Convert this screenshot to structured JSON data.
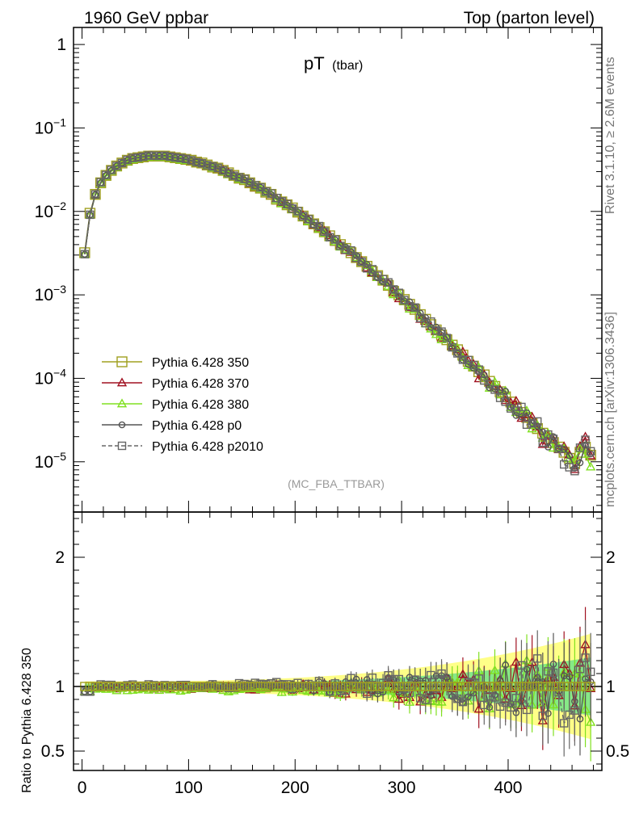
{
  "header": {
    "left": "1960 GeV ppbar",
    "right": "Top (parton level)"
  },
  "plot_title": {
    "main": "pT",
    "sub": "(tbar)"
  },
  "side_texts": {
    "rivet": "Rivet 3.1.10, ≥ 2.6M events",
    "mcplots": "mcplots.cern.ch [arXiv:1306.3436]"
  },
  "analysis_id": "(MC_FBA_TTBAR)",
  "chart_data": [
    {
      "type": "line",
      "yscale": "log",
      "xlim": [
        -8,
        488
      ],
      "ylim": [
        2.5e-06,
        1.6
      ],
      "y_ticks": [
        {
          "value": 1,
          "base": "1",
          "exp": ""
        },
        {
          "value": 0.1,
          "base": "10",
          "exp": "−1"
        },
        {
          "value": 0.01,
          "base": "10",
          "exp": "−2"
        },
        {
          "value": 0.001,
          "base": "10",
          "exp": "−3"
        },
        {
          "value": 0.0001,
          "base": "10",
          "exp": "−4"
        },
        {
          "value": 1e-05,
          "base": "10",
          "exp": "−5"
        }
      ],
      "legend_position": "bottom-left",
      "series": [
        {
          "name": "Pythia 6.428 350",
          "color": "#a0a020",
          "marker": "square-open",
          "line": "solid"
        },
        {
          "name": "Pythia 6.428 370",
          "color": "#a01020",
          "marker": "triangle-open",
          "line": "solid"
        },
        {
          "name": "Pythia 6.428 380",
          "color": "#80e020",
          "marker": "triangle-open",
          "line": "solid"
        },
        {
          "name": "Pythia 6.428 p0",
          "color": "#555555",
          "marker": "circle-open",
          "line": "solid"
        },
        {
          "name": "Pythia 6.428 p2010",
          "color": "#666666",
          "marker": "square-open",
          "line": "dashed"
        }
      ],
      "x": [
        2.5,
        7.5,
        12.5,
        17.5,
        22.5,
        27.5,
        32.5,
        37.5,
        42.5,
        47.5,
        52.5,
        57.5,
        62.5,
        67.5,
        72.5,
        77.5,
        82.5,
        87.5,
        92.5,
        97.5,
        102.5,
        107.5,
        112.5,
        117.5,
        122.5,
        127.5,
        132.5,
        137.5,
        142.5,
        147.5,
        152.5,
        157.5,
        162.5,
        167.5,
        172.5,
        177.5,
        182.5,
        187.5,
        192.5,
        197.5,
        202.5,
        207.5,
        212.5,
        217.5,
        222.5,
        227.5,
        232.5,
        237.5,
        242.5,
        247.5,
        252.5,
        257.5,
        262.5,
        267.5,
        272.5,
        277.5,
        282.5,
        287.5,
        292.5,
        297.5,
        302.5,
        307.5,
        312.5,
        317.5,
        322.5,
        327.5,
        332.5,
        337.5,
        342.5,
        347.5,
        352.5,
        357.5,
        362.5,
        367.5,
        372.5,
        377.5,
        382.5,
        387.5,
        392.5,
        397.5,
        402.5,
        407.5,
        412.5,
        417.5,
        422.5,
        427.5,
        432.5,
        437.5,
        442.5,
        447.5,
        452.5,
        457.5,
        462.5,
        467.5,
        472.5,
        477.5
      ],
      "reference": [
        0.0032,
        0.0095,
        0.016,
        0.022,
        0.027,
        0.031,
        0.035,
        0.038,
        0.041,
        0.043,
        0.044,
        0.045,
        0.046,
        0.046,
        0.046,
        0.046,
        0.045,
        0.044,
        0.043,
        0.042,
        0.041,
        0.039,
        0.038,
        0.036,
        0.034,
        0.033,
        0.031,
        0.029,
        0.027,
        0.025,
        0.024,
        0.022,
        0.02,
        0.019,
        0.017,
        0.016,
        0.014,
        0.013,
        0.012,
        0.011,
        0.0098,
        0.0088,
        0.0079,
        0.0071,
        0.0064,
        0.0057,
        0.0051,
        0.0045,
        0.004,
        0.0036,
        0.0032,
        0.0028,
        0.0025,
        0.0022,
        0.0019,
        0.0017,
        0.0015,
        0.0013,
        0.0011,
        0.001,
        0.00088,
        0.00077,
        0.00067,
        0.00058,
        0.00051,
        0.00044,
        0.00038,
        0.00033,
        0.00029,
        0.00025,
        0.00022,
        0.00019,
        0.00016,
        0.00014,
        0.00012,
        0.00011,
        9.2e-05,
        8e-05,
        6.9e-05,
        6e-05,
        5.2e-05,
        4.5e-05,
        3.9e-05,
        3.4e-05,
        2.9e-05,
        2.5e-05,
        2.2e-05,
        1.9e-05,
        1.7e-05,
        1.5e-05,
        1.3e-05,
        1.1e-05,
        9.5e-06,
        1.3e-05,
        1.5e-05,
        1.2e-05
      ]
    },
    {
      "type": "line",
      "xlim": [
        -8,
        488
      ],
      "ylim": [
        0.35,
        2.35
      ],
      "x_ticks": [
        0,
        100,
        200,
        300,
        400
      ],
      "y_ticks": [
        0.5,
        1,
        2
      ],
      "ylabel": "Ratio to Pythia 6.428 350",
      "band_color_inner": "#86e886",
      "band_color_outer": "#ffff88"
    }
  ]
}
